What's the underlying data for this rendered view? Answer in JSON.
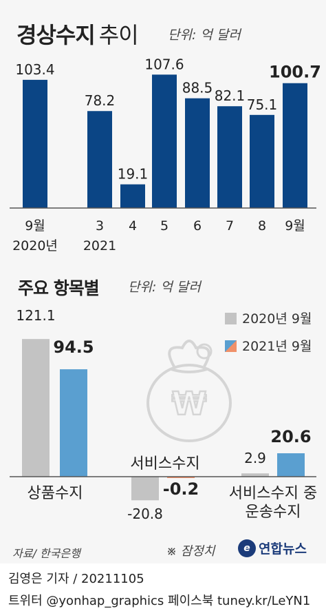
{
  "header": {
    "title_bold": "경상수지",
    "title_light": "추이",
    "unit": "단위: 억 달러"
  },
  "section2": {
    "title": "주요 항목별",
    "unit": "단위: 억 달러"
  },
  "chart_data": [
    {
      "type": "bar",
      "categories": [
        "9월\n2020년",
        "3\n2021",
        "4",
        "5",
        "6",
        "7",
        "8",
        "9월"
      ],
      "values": [
        103.4,
        78.2,
        19.1,
        107.6,
        88.5,
        82.1,
        75.1,
        100.7
      ],
      "value_labels": [
        "103.4",
        "78.2",
        "19.1",
        "107.6",
        "88.5",
        "82.1",
        "75.1",
        "100.7"
      ],
      "highlight_last": true,
      "color": "#0b4585",
      "ylim": [
        0,
        110
      ]
    },
    {
      "type": "bar",
      "categories": [
        "상품수지",
        "서비스수지",
        "서비스수지 중\n운송수지"
      ],
      "series": [
        {
          "name": "2020년 9월",
          "values": [
            121.1,
            -20.8,
            2.9
          ],
          "labels": [
            "121.1",
            "-20.8",
            "2.9"
          ],
          "color": "#c3c3c3"
        },
        {
          "name": "2021년 9월",
          "values": [
            94.5,
            -0.2,
            20.6
          ],
          "labels": [
            "94.5",
            "-0.2",
            "20.6"
          ],
          "color": "#5a9fd0",
          "neg_color": "#f0916a"
        }
      ]
    }
  ],
  "footer": {
    "source": "자료/ 한국은행",
    "note": "※ 잠정치",
    "logo_text": "연합뉴스",
    "reporter": "김영은 기자 / 20211105",
    "social": "트위터 @yonhap_graphics  페이스북 tuney.kr/LeYN1"
  }
}
